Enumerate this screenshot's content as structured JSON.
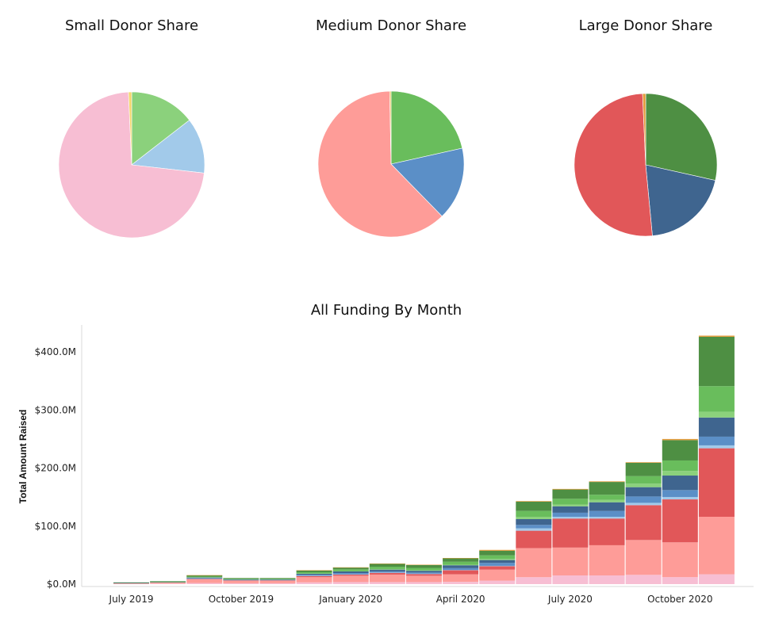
{
  "colors": {
    "small_light_pink": "#F7BED3",
    "small_light_green": "#8BD17C",
    "small_light_blue": "#A2CAEA",
    "small_yellow": "#F5D66E",
    "medium_salmon": "#FE9C98",
    "medium_green": "#69BD5C",
    "medium_blue": "#5B8FC7",
    "medium_yellow": "#E9C35A",
    "large_red": "#E15759",
    "large_green": "#4E8F43",
    "large_blue": "#3F658F",
    "large_orange": "#E39B3A"
  },
  "chart_data": [
    {
      "type": "pie",
      "title": "Small Donor Share",
      "slices": [
        {
          "color_key": "small_light_green",
          "value": 14.5
        },
        {
          "color_key": "small_light_blue",
          "value": 12.3
        },
        {
          "color_key": "small_light_pink",
          "value": 72.5
        },
        {
          "color_key": "small_yellow",
          "value": 0.7
        }
      ]
    },
    {
      "type": "pie",
      "title": "Medium Donor Share",
      "slices": [
        {
          "color_key": "medium_green",
          "value": 21.5
        },
        {
          "color_key": "medium_blue",
          "value": 16.2
        },
        {
          "color_key": "medium_salmon",
          "value": 62.0
        },
        {
          "color_key": "medium_yellow",
          "value": 0.3
        }
      ]
    },
    {
      "type": "pie",
      "title": "Large Donor Share",
      "slices": [
        {
          "color_key": "large_green",
          "value": 28.5
        },
        {
          "color_key": "large_blue",
          "value": 20.0
        },
        {
          "color_key": "large_red",
          "value": 50.8
        },
        {
          "color_key": "large_orange",
          "value": 0.7
        }
      ]
    },
    {
      "type": "bar",
      "stacked": true,
      "title": "All Funding By Month",
      "ylabel": "Total Amount Raised",
      "xlabel": "",
      "ylim": [
        0,
        440
      ],
      "yticks": [
        {
          "value": 0,
          "label": "$0.0M"
        },
        {
          "value": 100,
          "label": "$100.0M"
        },
        {
          "value": 200,
          "label": "$200.0M"
        },
        {
          "value": 300,
          "label": "$300.0M"
        },
        {
          "value": 400,
          "label": "$400.0M"
        }
      ],
      "xticks": [
        {
          "label": "July 2019",
          "index": 0
        },
        {
          "label": "October 2019",
          "index": 3
        },
        {
          "label": "January 2020",
          "index": 6
        },
        {
          "label": "April 2020",
          "index": 9
        },
        {
          "label": "July 2020",
          "index": 12
        },
        {
          "label": "October 2020",
          "index": 15
        }
      ],
      "categories": [
        "Jul 2019",
        "Aug 2019",
        "Sep 2019",
        "Oct 2019",
        "Nov 2019",
        "Dec 2019",
        "Jan 2020",
        "Feb 2020",
        "Mar 2020",
        "Apr 2020",
        "May 2020",
        "Jun 2020",
        "Jul 2020",
        "Aug 2020",
        "Sep 2020",
        "Oct 2020",
        "Nov 2020"
      ],
      "series": [
        {
          "color_key": "small_light_pink",
          "values": [
            0.5,
            1,
            2,
            1.5,
            1.5,
            3,
            3.5,
            3.5,
            3.5,
            4,
            6,
            12,
            15,
            15,
            16,
            12,
            17
          ]
        },
        {
          "color_key": "medium_salmon",
          "values": [
            1,
            2,
            6,
            4,
            4,
            9,
            11,
            13,
            11,
            13,
            19,
            50,
            48,
            52,
            60,
            60,
            99
          ]
        },
        {
          "color_key": "large_red",
          "values": [
            0,
            0,
            1,
            1,
            1,
            2,
            2,
            3,
            3,
            7,
            6,
            30,
            50,
            46,
            60,
            74,
            118
          ]
        },
        {
          "color_key": "small_light_blue",
          "values": [
            0,
            0,
            0.5,
            0.5,
            0.5,
            0.5,
            0.5,
            0.5,
            0.5,
            0.5,
            0.5,
            4,
            3,
            3,
            4,
            4,
            5
          ]
        },
        {
          "color_key": "medium_blue",
          "values": [
            0,
            0,
            1,
            0.5,
            0.5,
            1.5,
            2,
            2,
            2,
            3,
            5,
            6,
            7,
            10,
            11,
            12,
            15
          ]
        },
        {
          "color_key": "large_blue",
          "values": [
            0.5,
            0.5,
            1,
            0.5,
            0.5,
            2,
            3,
            3,
            3,
            5,
            5,
            10,
            11,
            15,
            16,
            25,
            33
          ]
        },
        {
          "color_key": "small_light_green",
          "values": [
            0,
            0,
            0.5,
            0.5,
            0.5,
            0.5,
            0.5,
            1,
            1,
            1,
            2,
            4,
            3,
            4,
            6,
            8,
            10
          ]
        },
        {
          "color_key": "medium_green",
          "values": [
            0,
            0.5,
            1,
            0.5,
            0.5,
            2,
            3,
            4,
            4,
            5,
            6,
            10,
            10,
            9,
            13,
            18,
            44
          ]
        },
        {
          "color_key": "large_green",
          "values": [
            1,
            1,
            2,
            1.5,
            1.5,
            3,
            3,
            5,
            5,
            6,
            8,
            16,
            16,
            22,
            23,
            35,
            85
          ]
        },
        {
          "color_key": "large_orange",
          "values": [
            0,
            0,
            0.5,
            0,
            0,
            0.5,
            0.5,
            0.5,
            0.5,
            0.5,
            1.5,
            1,
            1,
            1,
            1,
            2,
            2
          ]
        }
      ]
    }
  ]
}
